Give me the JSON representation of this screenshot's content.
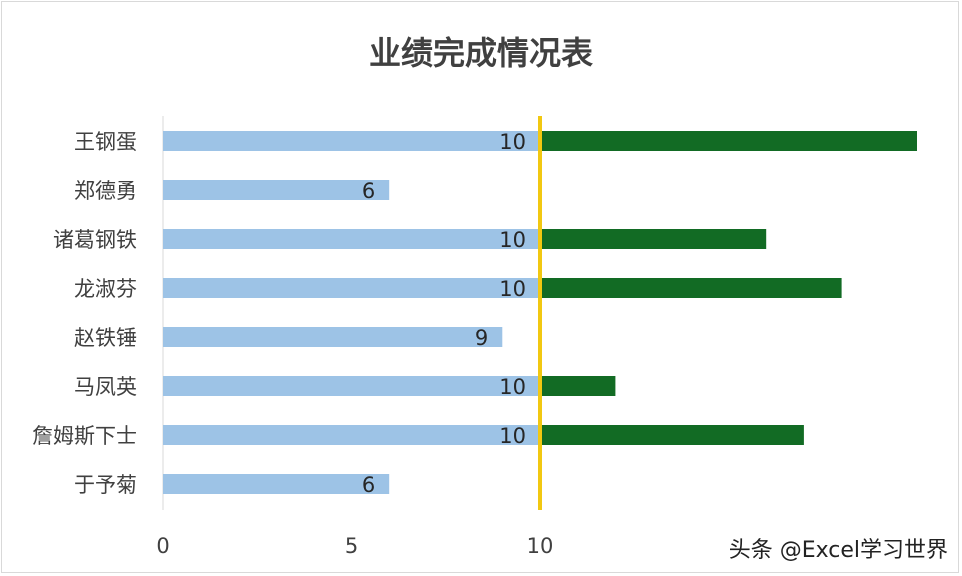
{
  "chart_data": {
    "type": "bar",
    "orientation": "horizontal",
    "stacked": true,
    "title": "业绩完成情况表",
    "categories": [
      "王钢蛋",
      "郑德勇",
      "诸葛钢铁",
      "龙淑芬",
      "赵铁锤",
      "马凤英",
      "詹姆斯下士",
      "于予菊"
    ],
    "series": [
      {
        "color": "#9dc3e6",
        "values": [
          10,
          6,
          10,
          10,
          9,
          10,
          10,
          6
        ],
        "data_labels": [
          "10",
          "6",
          "10",
          "10",
          "9",
          "10",
          "10",
          "6"
        ]
      },
      {
        "color": "#126b24",
        "values": [
          10,
          0,
          6,
          8,
          0,
          2,
          7,
          0
        ]
      }
    ],
    "x_ticks": [
      "0",
      "5",
      "10"
    ],
    "xlim": [
      0,
      20
    ],
    "reference_line": {
      "value": 10,
      "color": "#f2c811"
    },
    "grid": false,
    "legend": "none"
  },
  "colors": {
    "title": "#404040",
    "axis_line": "#d9d9d9"
  },
  "watermark": "头条 @Excel学习世界"
}
